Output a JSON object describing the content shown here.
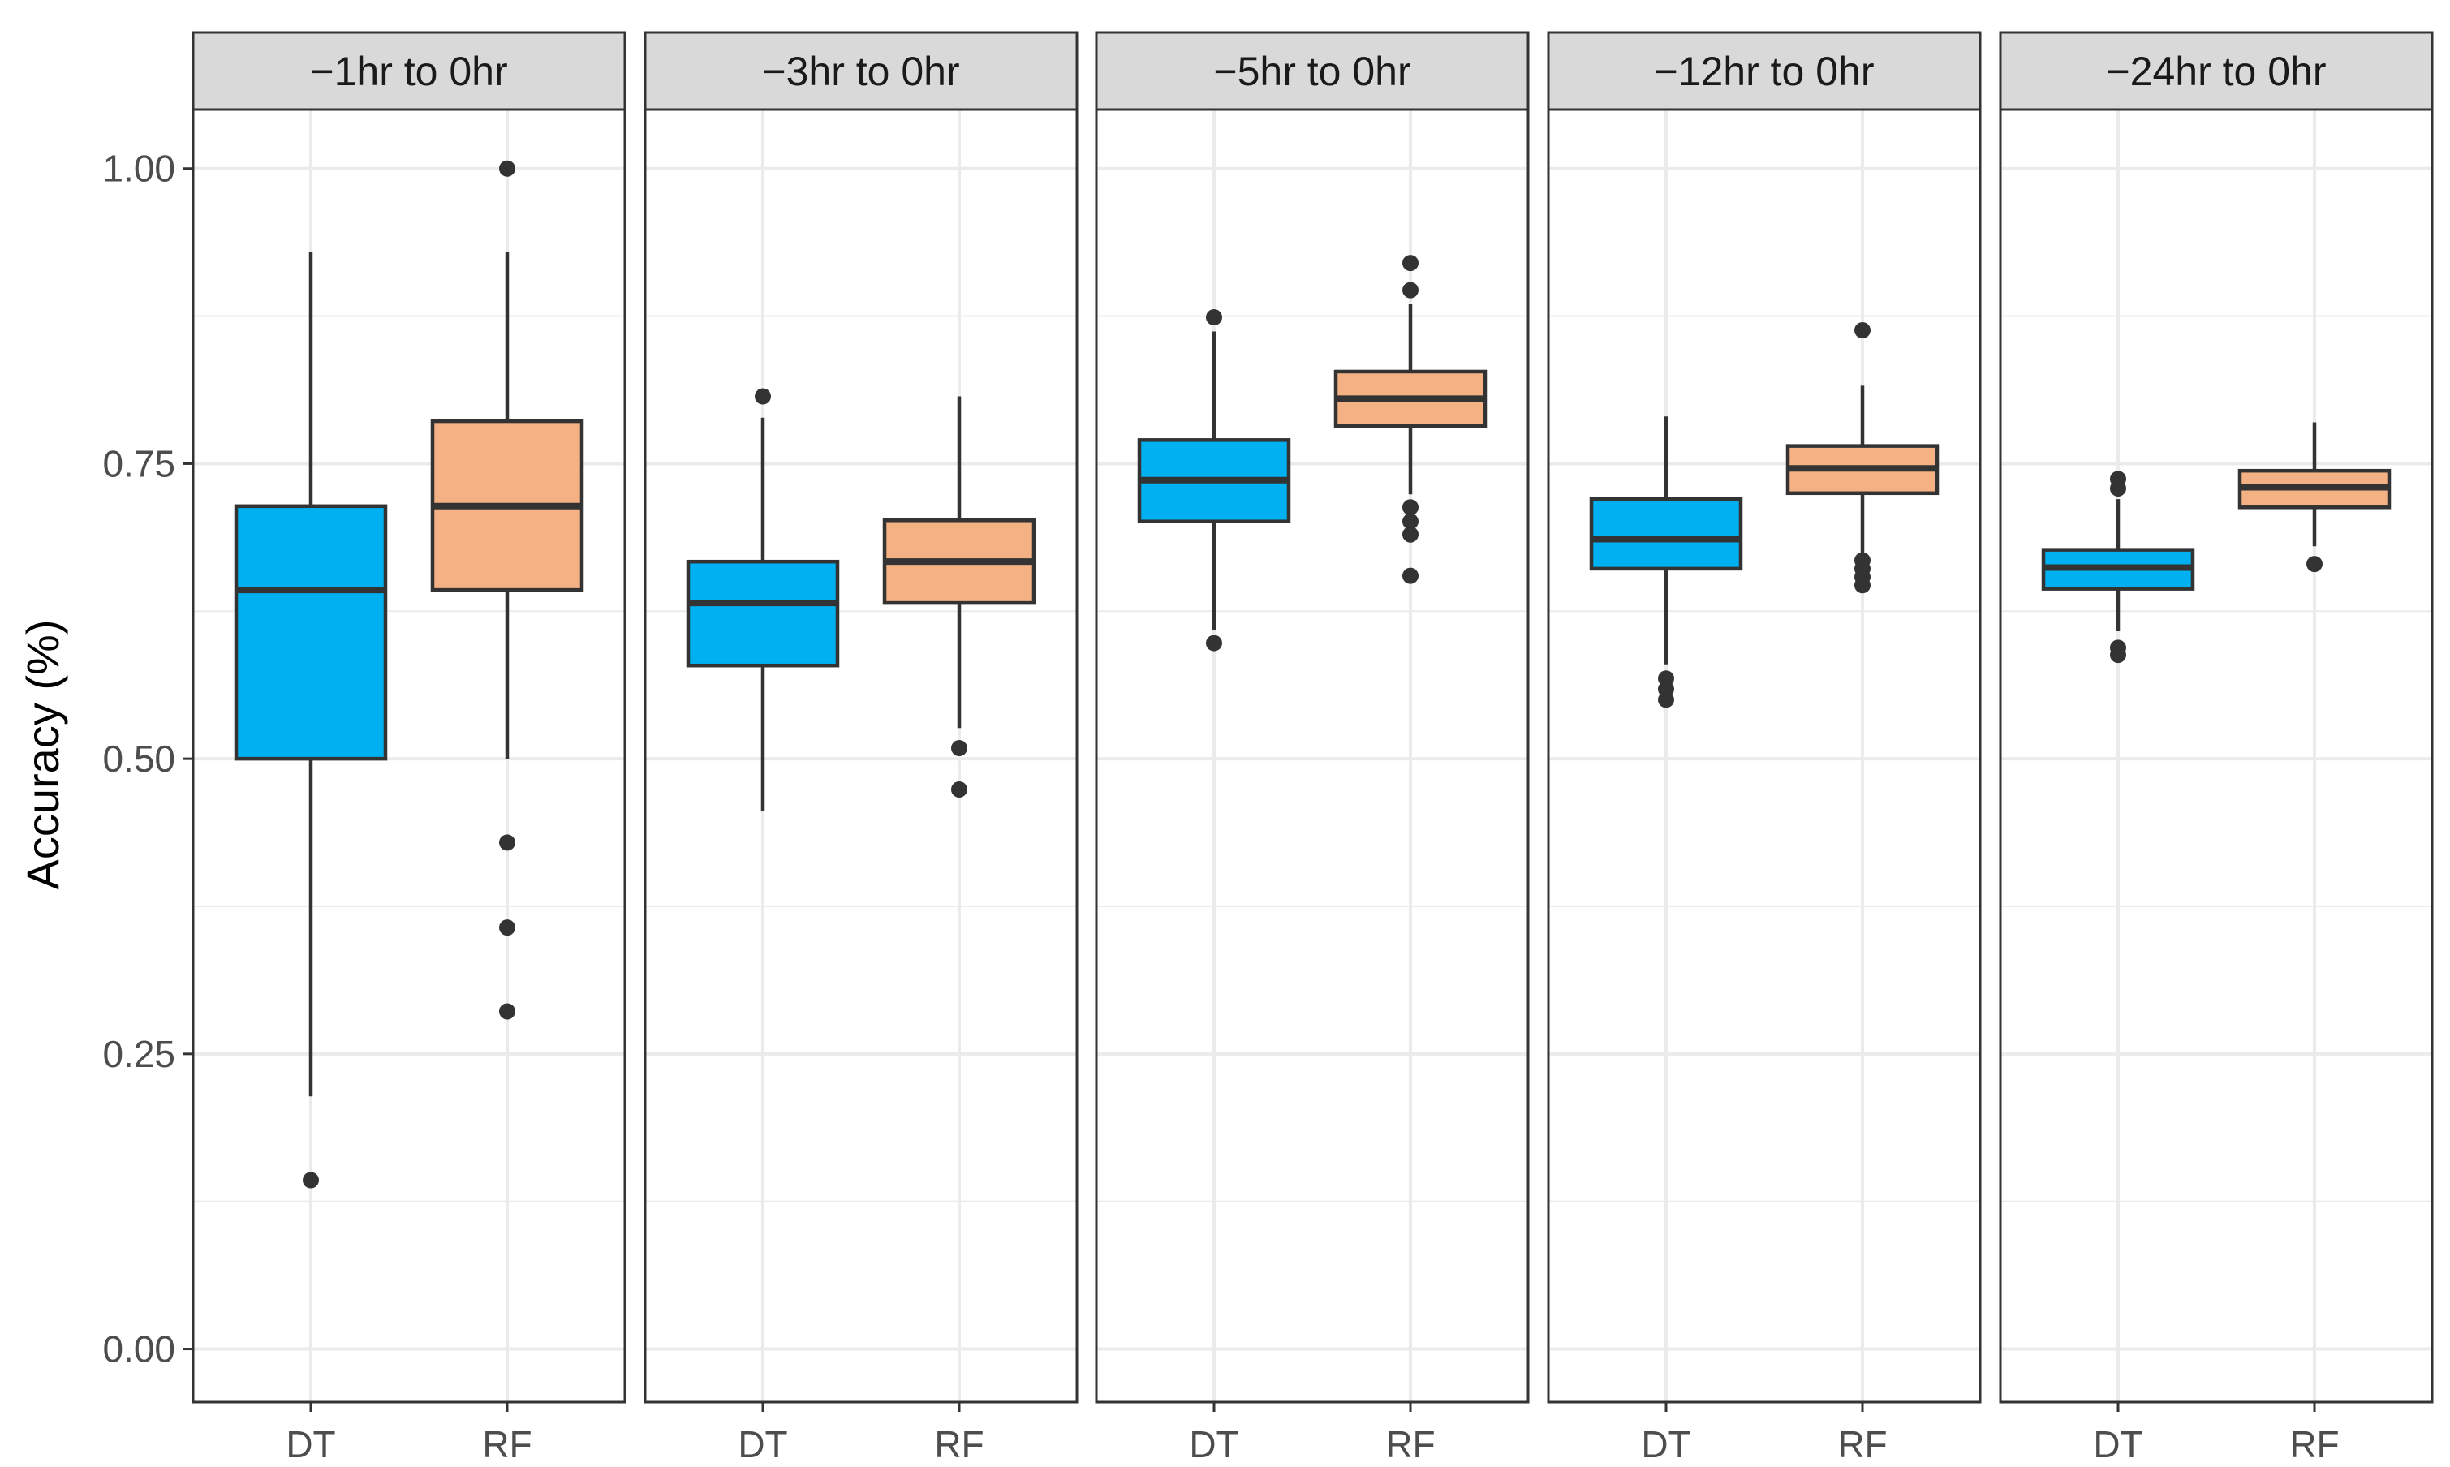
{
  "chart_data": {
    "type": "boxplot",
    "ylabel": "Accuracy (%)",
    "xlabel": "",
    "ylim": [
      -0.045,
      1.05
    ],
    "yticks": [
      0.0,
      0.25,
      0.5,
      0.75,
      1.0
    ],
    "ytick_labels": [
      "0.00",
      "0.25",
      "0.50",
      "0.75",
      "1.00"
    ],
    "categories": [
      "DT",
      "RF"
    ],
    "colors": {
      "DT": "#00B0F0",
      "RF": "#F4B183"
    },
    "grid": true,
    "legend": "none",
    "panels": [
      {
        "title": "−1hr to 0hr",
        "boxes": [
          {
            "category": "DT",
            "lower_whisker": 0.214,
            "q1": 0.5,
            "median": 0.643,
            "q3": 0.714,
            "upper_whisker": 0.929,
            "outliers": [
              0.143
            ]
          },
          {
            "category": "RF",
            "lower_whisker": 0.5,
            "q1": 0.643,
            "median": 0.714,
            "q3": 0.786,
            "upper_whisker": 0.929,
            "outliers": [
              1.0,
              0.429,
              0.357,
              0.286
            ]
          }
        ]
      },
      {
        "title": "−3hr to 0hr",
        "boxes": [
          {
            "category": "DT",
            "lower_whisker": 0.456,
            "q1": 0.579,
            "median": 0.632,
            "q3": 0.667,
            "upper_whisker": 0.789,
            "outliers": [
              0.807
            ]
          },
          {
            "category": "RF",
            "lower_whisker": 0.526,
            "q1": 0.632,
            "median": 0.667,
            "q3": 0.702,
            "upper_whisker": 0.807,
            "outliers": [
              0.509,
              0.474
            ]
          }
        ]
      },
      {
        "title": "−5hr to 0hr",
        "boxes": [
          {
            "category": "DT",
            "lower_whisker": 0.609,
            "q1": 0.701,
            "median": 0.736,
            "q3": 0.77,
            "upper_whisker": 0.862,
            "outliers": [
              0.874,
              0.598
            ]
          },
          {
            "category": "RF",
            "lower_whisker": 0.724,
            "q1": 0.782,
            "median": 0.805,
            "q3": 0.828,
            "upper_whisker": 0.885,
            "outliers": [
              0.92,
              0.897,
              0.713,
              0.701,
              0.69,
              0.655
            ]
          }
        ]
      },
      {
        "title": "−12hr to 0hr",
        "boxes": [
          {
            "category": "DT",
            "lower_whisker": 0.58,
            "q1": 0.661,
            "median": 0.686,
            "q3": 0.72,
            "upper_whisker": 0.79,
            "outliers": [
              0.568,
              0.559,
              0.55
            ]
          },
          {
            "category": "RF",
            "lower_whisker": 0.672,
            "q1": 0.725,
            "median": 0.746,
            "q3": 0.765,
            "upper_whisker": 0.816,
            "outliers": [
              0.863,
              0.668,
              0.661,
              0.654,
              0.647
            ]
          }
        ]
      },
      {
        "title": "−24hr to 0hr",
        "boxes": [
          {
            "category": "DT",
            "lower_whisker": 0.608,
            "q1": 0.644,
            "median": 0.662,
            "q3": 0.677,
            "upper_whisker": 0.72,
            "outliers": [
              0.737,
              0.729,
              0.594,
              0.588
            ]
          },
          {
            "category": "RF",
            "lower_whisker": 0.68,
            "q1": 0.713,
            "median": 0.73,
            "q3": 0.744,
            "upper_whisker": 0.785,
            "outliers": [
              0.665
            ]
          }
        ]
      }
    ]
  }
}
